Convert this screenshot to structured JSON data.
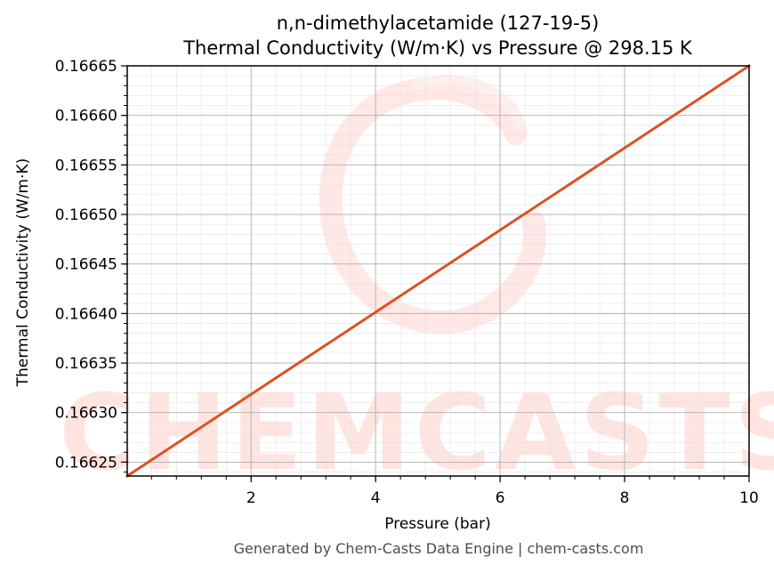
{
  "chart_data": {
    "type": "line",
    "title": "n,n-dimethylacetamide (127-19-5)",
    "subtitle": "Thermal Conductivity (W/m·K) vs Pressure @ 298.15 K",
    "xlabel": "Pressure (bar)",
    "ylabel": "Thermal Conductivity (W/m·K)",
    "xlim": [
      0.01,
      10
    ],
    "ylim": [
      0.166236,
      0.16665
    ],
    "x_ticks": [
      2,
      4,
      6,
      8,
      10
    ],
    "x_tick_labels": [
      "2",
      "4",
      "6",
      "8",
      "10"
    ],
    "y_ticks": [
      0.16625,
      0.1663,
      0.16635,
      0.1664,
      0.16645,
      0.1665,
      0.16655,
      0.1666,
      0.16665
    ],
    "y_tick_labels": [
      "0.16625",
      "0.16630",
      "0.16635",
      "0.16640",
      "0.16645",
      "0.16650",
      "0.16655",
      "0.16660",
      "0.16665"
    ],
    "grid": true,
    "legend": "none",
    "series": [
      {
        "color": "#d95323",
        "x": [
          0.01,
          10
        ],
        "y": [
          0.166236,
          0.16665
        ]
      }
    ]
  },
  "watermark": "CHEMCASTS",
  "footer": "Generated by Chem-Casts Data Engine | chem-casts.com"
}
